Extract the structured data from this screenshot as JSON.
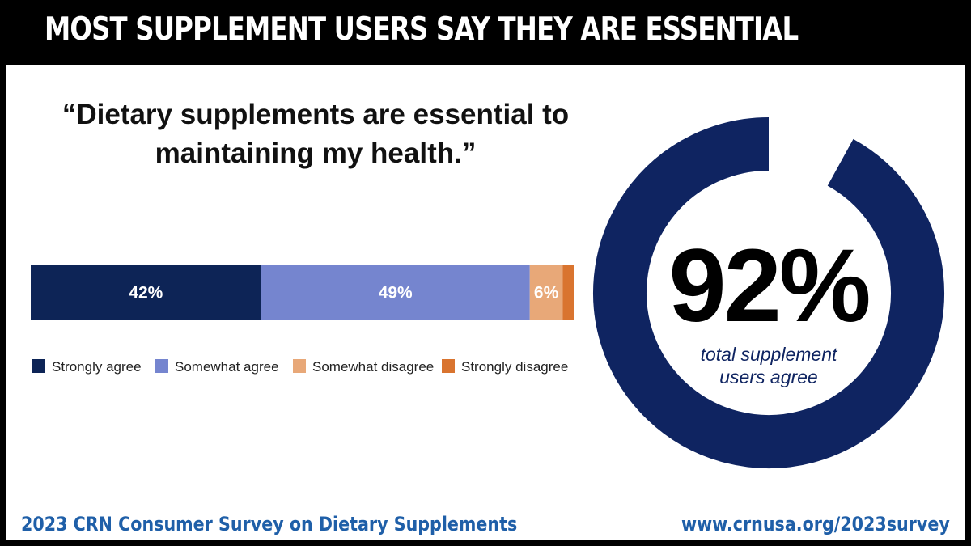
{
  "header": {
    "title": "MOST SUPPLEMENT USERS SAY THEY ARE ESSENTIAL"
  },
  "quote": "“Dietary supplements are essential to maintaining my health.”",
  "chart_data": [
    {
      "type": "bar",
      "orientation": "horizontal-stacked",
      "title": "“Dietary supplements are essential to maintaining my health.”",
      "categories": [
        "Strongly agree",
        "Somewhat agree",
        "Somewhat disagree",
        "Strongly disagree"
      ],
      "values": [
        42,
        49,
        6,
        2
      ],
      "labels": [
        "42%",
        "49%",
        "6%",
        ""
      ],
      "colors": [
        "#0d2456",
        "#7585cf",
        "#e8a878",
        "#d9742f"
      ],
      "legend_position": "bottom"
    },
    {
      "type": "pie",
      "style": "donut",
      "value": 92,
      "max": 100,
      "label": "92%",
      "caption": "total supplement users agree",
      "color": "#0f2461"
    }
  ],
  "big_stat": {
    "value": "92%",
    "caption_line1": "total supplement",
    "caption_line2": "users agree"
  },
  "footer": {
    "source": "2023 CRN Consumer Survey on Dietary Supplements",
    "url": "www.crnusa.org/2023survey"
  }
}
